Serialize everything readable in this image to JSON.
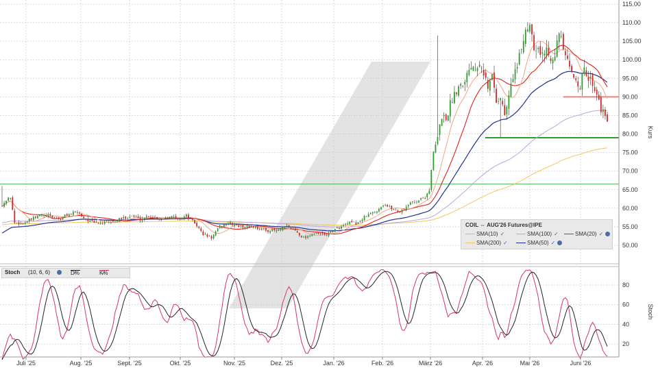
{
  "chart_data": [
    {
      "type": "candlestick",
      "instrument": "COIL",
      "legend_title": "COIL ⇔ AUG'26 Futures@IPE",
      "ylabel": "Kurs",
      "ylim": [
        45,
        117
      ],
      "y_ticks": [
        "50.00",
        "55.00",
        "60.00",
        "65.00",
        "70.00",
        "75.00",
        "80.00",
        "85.00",
        "90.00",
        "95.00",
        "100.00",
        "105.00",
        "110.00",
        "115.00"
      ],
      "x_ticks": [
        "Juli '25",
        "Aug. '25",
        "Sept. '25",
        "Okt. '25",
        "Nov. '25",
        "Dez. '25",
        "Jan. '26",
        "Feb. '26",
        "März '26",
        "Apr. '26",
        "Mai '26",
        "Juni '26"
      ],
      "grid": true,
      "price_anchors": [
        [
          0,
          61
        ],
        [
          4,
          63
        ],
        [
          6,
          56
        ],
        [
          10,
          56
        ],
        [
          14,
          57
        ],
        [
          18,
          58
        ],
        [
          22,
          58
        ],
        [
          28,
          57
        ],
        [
          30,
          58
        ],
        [
          36,
          59
        ],
        [
          40,
          57
        ],
        [
          44,
          56
        ],
        [
          50,
          56
        ],
        [
          56,
          57
        ],
        [
          62,
          58
        ],
        [
          66,
          57
        ],
        [
          70,
          58
        ],
        [
          76,
          57
        ],
        [
          80,
          58
        ],
        [
          84,
          57
        ],
        [
          88,
          58
        ],
        [
          92,
          56
        ],
        [
          96,
          53
        ],
        [
          100,
          52
        ],
        [
          104,
          55
        ],
        [
          108,
          56
        ],
        [
          114,
          55
        ],
        [
          120,
          55
        ],
        [
          126,
          54
        ],
        [
          132,
          54
        ],
        [
          136,
          55
        ],
        [
          140,
          54
        ],
        [
          144,
          52
        ],
        [
          148,
          53
        ],
        [
          152,
          53
        ],
        [
          156,
          53
        ],
        [
          158,
          54
        ],
        [
          162,
          55
        ],
        [
          166,
          56
        ],
        [
          170,
          56
        ],
        [
          174,
          58
        ],
        [
          178,
          59
        ],
        [
          182,
          61
        ],
        [
          186,
          60
        ],
        [
          190,
          59
        ],
        [
          194,
          61
        ],
        [
          198,
          62
        ],
        [
          202,
          63
        ],
        [
          204,
          65
        ],
        [
          206,
          75
        ],
        [
          208,
          79
        ],
        [
          210,
          85
        ],
        [
          212,
          84
        ],
        [
          214,
          88
        ],
        [
          216,
          91
        ],
        [
          218,
          93
        ],
        [
          220,
          94
        ],
        [
          222,
          96
        ],
        [
          224,
          99
        ],
        [
          226,
          98
        ],
        [
          228,
          100
        ],
        [
          230,
          97
        ],
        [
          232,
          92
        ],
        [
          234,
          96
        ],
        [
          236,
          89
        ],
        [
          238,
          90
        ],
        [
          240,
          85
        ],
        [
          242,
          90
        ],
        [
          244,
          96
        ],
        [
          246,
          98
        ],
        [
          248,
          103
        ],
        [
          250,
          108
        ],
        [
          252,
          110
        ],
        [
          254,
          104
        ],
        [
          256,
          103
        ],
        [
          258,
          101
        ],
        [
          260,
          103
        ],
        [
          262,
          101
        ],
        [
          264,
          102
        ],
        [
          266,
          107
        ],
        [
          268,
          103
        ],
        [
          270,
          99
        ],
        [
          272,
          96
        ],
        [
          274,
          95
        ],
        [
          276,
          93
        ],
        [
          278,
          97
        ],
        [
          280,
          95
        ],
        [
          282,
          94
        ],
        [
          284,
          91
        ],
        [
          286,
          87
        ],
        [
          288,
          84
        ]
      ],
      "series": [
        {
          "name": "SMA(10)",
          "color": "#f4a582"
        },
        {
          "name": "SMA(100)",
          "color": "#bba6e0"
        },
        {
          "name": "SMA(20)",
          "color": "#e2231a"
        },
        {
          "name": "SMA(200)",
          "color": "#f2c65e"
        },
        {
          "name": "SMA(50)",
          "color": "#1f2f8f"
        }
      ],
      "horizontal_lines": [
        {
          "value": 66.5,
          "color": "#4caf50"
        },
        {
          "value": 79,
          "color": "#2e9e2e"
        },
        {
          "value": 90,
          "color": "#f08080"
        }
      ]
    },
    {
      "type": "line",
      "indicator": "Stoch",
      "params": "(10, 6, 6)",
      "ylabel": "Stoch",
      "ylim": [
        0,
        100
      ],
      "y_ticks": [
        "20",
        "40",
        "60",
        "80"
      ],
      "series": [
        {
          "name": "D%",
          "color": "#222222"
        },
        {
          "name": "K%",
          "color": "#d6336c"
        }
      ]
    }
  ],
  "legend": {
    "sma10": "SMA(10)",
    "sma100": "SMA(100)",
    "sma20": "SMA(20)",
    "sma200": "SMA(200)",
    "sma50": "SMA(50)",
    "check": "✓"
  },
  "stoch_legend": {
    "name": "Stoch",
    "params": "(10, 6, 6)",
    "d": "D%",
    "k": "K%",
    "check": "✓"
  }
}
